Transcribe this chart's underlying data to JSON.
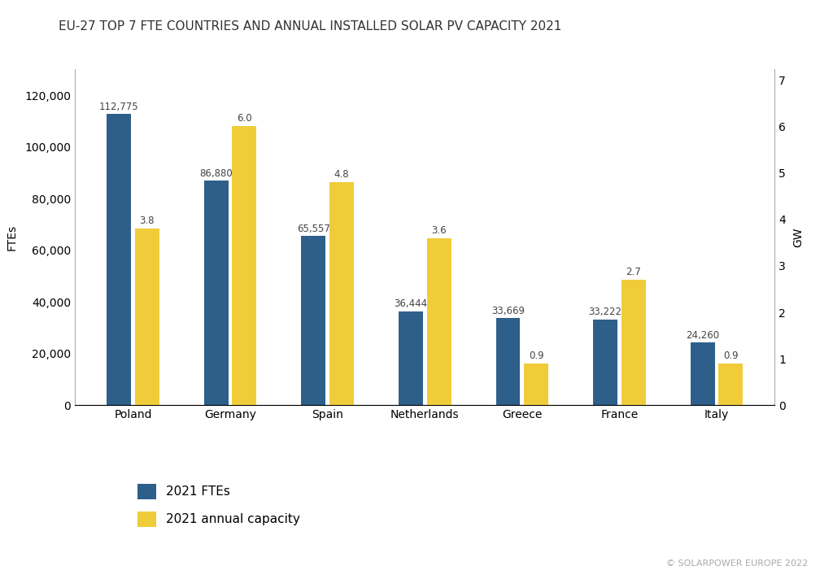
{
  "title": "EU-27 TOP 7 FTE COUNTRIES AND ANNUAL INSTALLED SOLAR PV CAPACITY 2021",
  "categories": [
    "Poland",
    "Germany",
    "Spain",
    "Netherlands",
    "Greece",
    "France",
    "Italy"
  ],
  "fte_values": [
    112775,
    86880,
    65557,
    36444,
    33669,
    33222,
    24260
  ],
  "gw_values": [
    3.8,
    6.0,
    4.8,
    3.6,
    0.9,
    2.7,
    0.9
  ],
  "fte_labels": [
    "112,775",
    "86,880",
    "65,557",
    "36,444",
    "33,669",
    "33,222",
    "24,260"
  ],
  "gw_labels": [
    "3.8",
    "6.0",
    "4.8",
    "3.6",
    "0.9",
    "2.7",
    "0.9"
  ],
  "bar_color_fte": "#2e5f8a",
  "bar_color_gw": "#f0cc3a",
  "ylabel_left": "FTEs",
  "ylabel_right": "GW",
  "ylim_left": [
    0,
    130000
  ],
  "ylim_right": [
    0,
    7.2222
  ],
  "yticks_left": [
    0,
    20000,
    40000,
    60000,
    80000,
    100000,
    120000
  ],
  "yticks_right": [
    0,
    1,
    2,
    3,
    4,
    5,
    6,
    7
  ],
  "legend_labels": [
    "2021 FTEs",
    "2021 annual capacity"
  ],
  "copyright_text": "© SOLARPOWER EUROPE 2022",
  "background_color": "#ffffff",
  "bar_width": 0.25,
  "bar_gap": 0.04,
  "title_fontsize": 11,
  "label_fontsize": 8.5,
  "axis_fontsize": 10,
  "tick_fontsize": 10,
  "legend_fontsize": 11
}
